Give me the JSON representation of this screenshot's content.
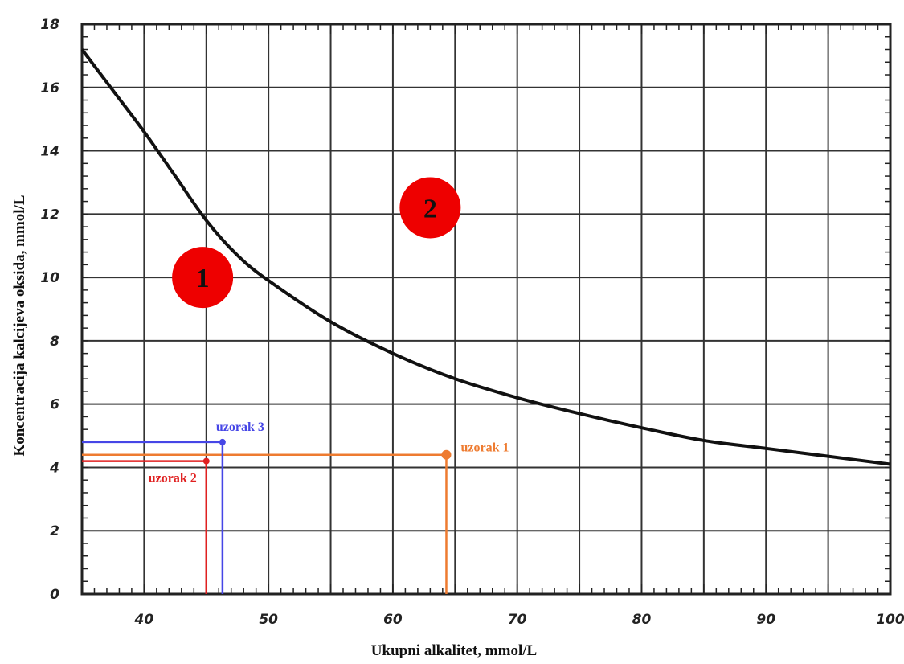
{
  "chart_data": {
    "type": "line",
    "title": "",
    "xlabel": "Ukupni alkalitet, mmol/L",
    "ylabel": "Koncentracija kalcijeva oksida, mmol/L",
    "xlim": [
      35,
      100
    ],
    "ylim": [
      0,
      18
    ],
    "x_ticks": [
      40,
      50,
      60,
      70,
      80,
      90,
      100
    ],
    "y_ticks": [
      0,
      2,
      4,
      6,
      8,
      10,
      12,
      14,
      16,
      18
    ],
    "x_grid": [
      35,
      40,
      45,
      50,
      55,
      60,
      65,
      70,
      75,
      80,
      85,
      90,
      95,
      100
    ],
    "y_grid": [
      0,
      2,
      4,
      6,
      8,
      10,
      12,
      14,
      16,
      18
    ],
    "grid": true,
    "series": [
      {
        "name": "",
        "x": [
          35,
          37.5,
          40,
          42.5,
          45,
          47.5,
          50,
          55,
          60,
          65,
          70,
          75,
          80,
          85,
          90,
          95,
          100
        ],
        "y": [
          17.2,
          15.9,
          14.6,
          13.2,
          11.8,
          10.7,
          9.9,
          8.6,
          7.6,
          6.8,
          6.2,
          5.7,
          5.25,
          4.85,
          4.6,
          4.35,
          4.1
        ],
        "color": "#111111"
      }
    ],
    "regions": [
      {
        "label": "1",
        "x": 44.7,
        "y": 10.0
      },
      {
        "label": "2",
        "x": 63.0,
        "y": 12.2
      }
    ],
    "samples": [
      {
        "label": "uzorak 1",
        "x": 64.3,
        "y": 4.4,
        "color": "#ee7b30"
      },
      {
        "label": "uzorak 2",
        "x": 45.0,
        "y": 4.2,
        "color": "#e02020"
      },
      {
        "label": "uzorak 3",
        "x": 46.3,
        "y": 4.8,
        "color": "#4646e6"
      }
    ]
  }
}
